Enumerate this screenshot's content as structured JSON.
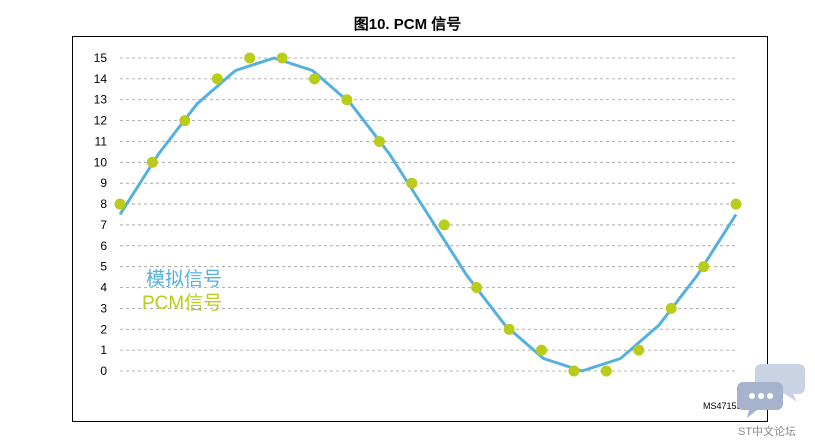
{
  "title": "图10. PCM 信号",
  "chart_data": {
    "type": "line",
    "title": "图10. PCM 信号",
    "xlabel": "",
    "ylabel": "",
    "ylim": [
      0,
      15
    ],
    "yticks": [
      0,
      1,
      2,
      3,
      4,
      5,
      6,
      7,
      8,
      9,
      10,
      11,
      12,
      13,
      14,
      15
    ],
    "grid": true,
    "legend_placement": "left-middle",
    "series": [
      {
        "name": "模拟信号",
        "kind": "line",
        "color": "#55b0de",
        "y": [
          7.5,
          10.4,
          12.8,
          14.4,
          15.0,
          14.4,
          12.8,
          10.4,
          7.5,
          4.6,
          2.2,
          0.6,
          0.0,
          0.6,
          2.2,
          4.6,
          7.5
        ]
      },
      {
        "name": "PCM信号",
        "kind": "points",
        "color": "#b9cc1a",
        "y": [
          8,
          10,
          12,
          14,
          15,
          15,
          14,
          13,
          11,
          9,
          7,
          4,
          2,
          1,
          0,
          0,
          1,
          3,
          5,
          8
        ]
      }
    ]
  },
  "figure_id": "MS47155V1",
  "watermark": {
    "text": "ST中文论坛",
    "icon": "chat-bubbles-icon"
  }
}
